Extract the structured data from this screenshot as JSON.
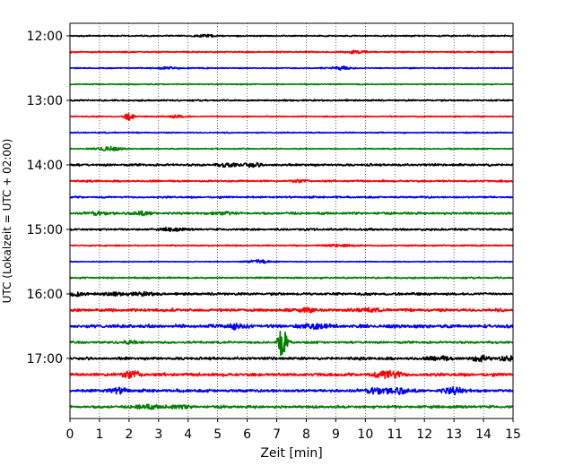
{
  "chart_data": {
    "type": "line",
    "title": "",
    "xlabel": "Zeit  [min]",
    "ylabel": "UTC (Lokalzeit = UTC + 02:00)",
    "xlim": [
      0,
      15
    ],
    "x_ticks": [
      "0",
      "1",
      "2",
      "3",
      "4",
      "5",
      "6",
      "7",
      "8",
      "9",
      "10",
      "11",
      "12",
      "13",
      "14",
      "15"
    ],
    "y_ticks": [
      "12:00",
      "13:00",
      "14:00",
      "15:00",
      "16:00",
      "17:00"
    ],
    "grid": "vertical dotted at each minute",
    "colors": [
      "#000000",
      "#ff0000",
      "#0000ff",
      "#008000"
    ],
    "series": [
      {
        "start": "12:00",
        "color": "#000000",
        "amplitude": 0.6,
        "events": [
          {
            "x": 4.6,
            "amp": 1.0
          }
        ]
      },
      {
        "start": "12:15",
        "color": "#ff0000",
        "amplitude": 0.6,
        "events": [
          {
            "x": 9.7,
            "amp": 1.6
          }
        ]
      },
      {
        "start": "12:30",
        "color": "#0000ff",
        "amplitude": 0.5,
        "events": [
          {
            "x": 9.2,
            "amp": 1.8
          },
          {
            "x": 3.3,
            "amp": 1.0
          }
        ]
      },
      {
        "start": "12:45",
        "color": "#008000",
        "amplitude": 0.5,
        "events": []
      },
      {
        "start": "13:00",
        "color": "#000000",
        "amplitude": 0.7,
        "events": []
      },
      {
        "start": "13:15",
        "color": "#ff0000",
        "amplitude": 0.5,
        "events": [
          {
            "x": 2.0,
            "amp": 5.0
          },
          {
            "x": 3.6,
            "amp": 1.2
          }
        ]
      },
      {
        "start": "13:30",
        "color": "#0000ff",
        "amplitude": 0.5,
        "events": []
      },
      {
        "start": "13:45",
        "color": "#008000",
        "amplitude": 0.5,
        "events": [
          {
            "x": 1.3,
            "amp": 2.5
          }
        ]
      },
      {
        "start": "14:00",
        "color": "#000000",
        "amplitude": 1.0,
        "events": [
          {
            "x": 5.3,
            "amp": 1.5
          },
          {
            "x": 6.2,
            "amp": 1.5
          }
        ]
      },
      {
        "start": "14:15",
        "color": "#ff0000",
        "amplitude": 0.8,
        "events": [
          {
            "x": 7.8,
            "amp": 1.2
          }
        ]
      },
      {
        "start": "14:30",
        "color": "#0000ff",
        "amplitude": 0.8,
        "events": []
      },
      {
        "start": "14:45",
        "color": "#008000",
        "amplitude": 1.0,
        "events": [
          {
            "x": 1.0,
            "amp": 1.5
          },
          {
            "x": 2.4,
            "amp": 1.6
          },
          {
            "x": 5.2,
            "amp": 1.4
          }
        ]
      },
      {
        "start": "15:00",
        "color": "#000000",
        "amplitude": 0.9,
        "events": [
          {
            "x": 3.5,
            "amp": 1.4
          }
        ]
      },
      {
        "start": "15:15",
        "color": "#ff0000",
        "amplitude": 0.6,
        "events": [
          {
            "x": 9.1,
            "amp": 1.3
          }
        ]
      },
      {
        "start": "15:30",
        "color": "#0000ff",
        "amplitude": 0.4,
        "events": [
          {
            "x": 6.4,
            "amp": 2.0
          }
        ]
      },
      {
        "start": "15:45",
        "color": "#008000",
        "amplitude": 0.7,
        "events": []
      },
      {
        "start": "16:00",
        "color": "#000000",
        "amplitude": 1.1,
        "events": [
          {
            "x": 0.2,
            "amp": 2.0
          },
          {
            "x": 1.5,
            "amp": 1.4
          },
          {
            "x": 2.5,
            "amp": 1.5
          }
        ]
      },
      {
        "start": "16:15",
        "color": "#ff0000",
        "amplitude": 1.3,
        "events": [
          {
            "x": 8.0,
            "amp": 1.7
          },
          {
            "x": 10.0,
            "amp": 1.4
          }
        ]
      },
      {
        "start": "16:30",
        "color": "#0000ff",
        "amplitude": 1.5,
        "events": [
          {
            "x": 5.6,
            "amp": 2.2
          },
          {
            "x": 8.4,
            "amp": 2.0
          }
        ]
      },
      {
        "start": "16:45",
        "color": "#008000",
        "amplitude": 1.0,
        "events": [
          {
            "x": 7.2,
            "amp": 16.0
          },
          {
            "x": 2.0,
            "amp": 1.4
          }
        ]
      },
      {
        "start": "17:00",
        "color": "#000000",
        "amplitude": 1.2,
        "events": [
          {
            "x": 12.5,
            "amp": 2.2
          },
          {
            "x": 13.9,
            "amp": 2.5
          },
          {
            "x": 14.9,
            "amp": 2.0
          }
        ]
      },
      {
        "start": "17:15",
        "color": "#ff0000",
        "amplitude": 1.4,
        "events": [
          {
            "x": 2.1,
            "amp": 3.5
          },
          {
            "x": 10.6,
            "amp": 2.6
          },
          {
            "x": 11.0,
            "amp": 2.2
          }
        ]
      },
      {
        "start": "17:30",
        "color": "#0000ff",
        "amplitude": 1.3,
        "events": [
          {
            "x": 1.6,
            "amp": 2.3
          },
          {
            "x": 10.4,
            "amp": 3.2
          },
          {
            "x": 11.1,
            "amp": 3.0
          },
          {
            "x": 13.0,
            "amp": 3.2
          }
        ]
      },
      {
        "start": "17:45",
        "color": "#008000",
        "amplitude": 1.2,
        "events": [
          {
            "x": 2.6,
            "amp": 2.2
          },
          {
            "x": 3.7,
            "amp": 1.5
          }
        ]
      }
    ]
  }
}
